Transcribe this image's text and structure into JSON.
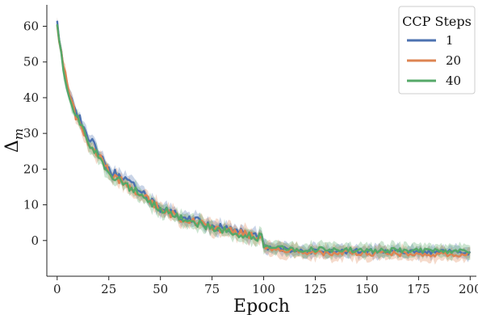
{
  "chart_data": {
    "type": "line",
    "title": "",
    "xlabel": "Epoch",
    "ylabel": "Δ_m",
    "xlim": [
      -5,
      203
    ],
    "ylim": [
      -10,
      66
    ],
    "xticks": [
      0,
      25,
      50,
      75,
      100,
      125,
      150,
      175,
      200
    ],
    "yticks": [
      0,
      10,
      20,
      30,
      40,
      50,
      60
    ],
    "grid": false,
    "legend": {
      "title": "CCP Steps",
      "placement": "top-right"
    },
    "series": [
      {
        "name": "1",
        "color": "#4c72b0",
        "x": [
          0,
          3,
          6,
          9,
          12,
          15,
          18,
          21,
          24,
          27,
          30,
          35,
          40,
          45,
          50,
          55,
          60,
          65,
          70,
          75,
          80,
          85,
          90,
          95,
          99,
          100,
          102,
          110,
          120,
          130,
          140,
          150,
          160,
          170,
          180,
          190,
          200
        ],
        "y": [
          61,
          48,
          41,
          36,
          33,
          28,
          27,
          24,
          21,
          19,
          18.5,
          16,
          14,
          11,
          9,
          8,
          6.5,
          6,
          5,
          4,
          3.5,
          3,
          2,
          1.5,
          1.2,
          -1.5,
          -2,
          -2.5,
          -3,
          -3,
          -3,
          -3,
          -3.2,
          -3.2,
          -3.3,
          -3.3,
          -3.3
        ],
        "band": 1.5
      },
      {
        "name": "20",
        "color": "#dd8452",
        "x": [
          0,
          3,
          6,
          9,
          12,
          15,
          18,
          21,
          24,
          27,
          30,
          35,
          40,
          45,
          50,
          55,
          60,
          65,
          70,
          75,
          80,
          85,
          90,
          95,
          99,
          100,
          102,
          110,
          120,
          130,
          140,
          150,
          160,
          170,
          180,
          190,
          200
        ],
        "y": [
          60,
          49,
          41,
          35,
          32,
          27,
          25,
          23,
          20.5,
          18,
          17,
          15.5,
          13,
          11,
          9,
          7.5,
          6,
          5.5,
          5,
          3.5,
          3,
          2.5,
          2,
          1.5,
          1,
          -2,
          -2.2,
          -2.8,
          -3.2,
          -3.5,
          -3.5,
          -3.6,
          -3.6,
          -3.8,
          -3.8,
          -3.9,
          -4
        ],
        "band": 1.7
      },
      {
        "name": "40",
        "color": "#55a868",
        "x": [
          0,
          3,
          6,
          9,
          12,
          15,
          18,
          21,
          24,
          27,
          30,
          35,
          40,
          45,
          50,
          55,
          60,
          65,
          70,
          75,
          80,
          85,
          90,
          95,
          99,
          100,
          102,
          110,
          120,
          130,
          140,
          150,
          160,
          170,
          180,
          190,
          200
        ],
        "y": [
          60.5,
          47,
          40,
          35,
          32,
          27.5,
          25.5,
          23,
          20,
          18,
          17.5,
          15,
          13,
          10.5,
          9,
          7.5,
          6.5,
          5.5,
          4.5,
          3.5,
          3,
          2.5,
          1.5,
          1,
          1,
          -1.5,
          -2,
          -2.2,
          -2.5,
          -2.5,
          -2.7,
          -2.8,
          -2.8,
          -2.8,
          -3,
          -3,
          -3
        ],
        "band": 1.6
      }
    ]
  }
}
